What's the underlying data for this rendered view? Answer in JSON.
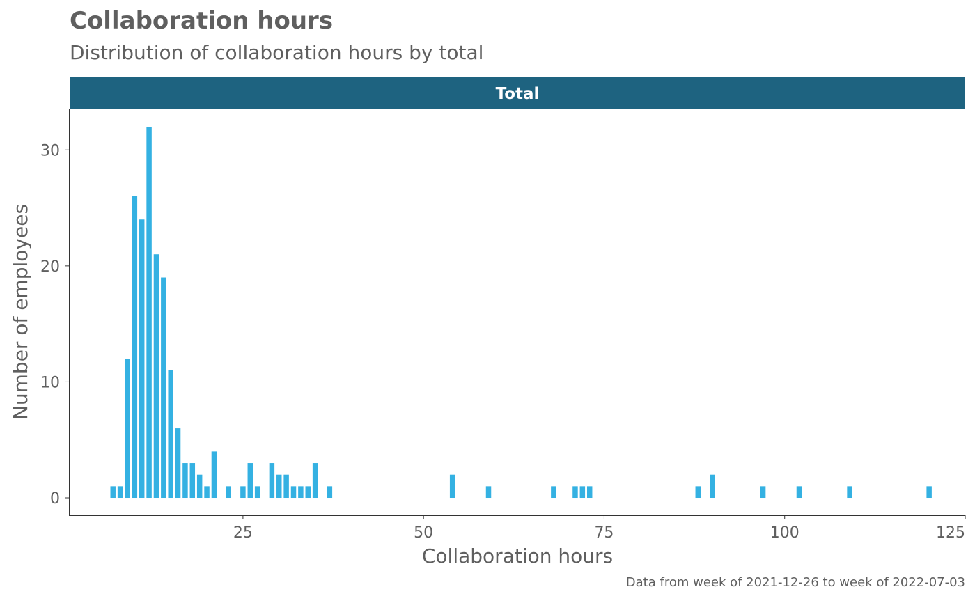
{
  "title": "Collaboration hours",
  "subtitle": "Distribution of collaboration hours by total",
  "caption": "Data from week of 2021-12-26 to week of 2022-07-03",
  "colors": {
    "bar": "#34b1e2",
    "facet_strip": "#1e6380",
    "text": "#5f5f5f",
    "axis": "#333333"
  },
  "chart_data": {
    "type": "bar",
    "facet": "Total",
    "xlabel": "Collaboration hours",
    "ylabel": "Number of employees",
    "xlim": [
      1,
      125
    ],
    "ylim": [
      -1.5,
      33.5
    ],
    "x_ticks": [
      25,
      50,
      75,
      100,
      125
    ],
    "y_ticks": [
      0,
      10,
      20,
      30
    ],
    "grid": false,
    "x": [
      7,
      8,
      9,
      10,
      11,
      12,
      13,
      14,
      15,
      16,
      17,
      18,
      19,
      20,
      21,
      23,
      25,
      26,
      27,
      29,
      30,
      31,
      32,
      33,
      34,
      35,
      37,
      54,
      59,
      68,
      71,
      72,
      73,
      88,
      90,
      97,
      102,
      109,
      120
    ],
    "values": [
      1,
      1,
      12,
      26,
      24,
      32,
      21,
      19,
      11,
      6,
      3,
      3,
      2,
      1,
      4,
      1,
      1,
      3,
      1,
      3,
      2,
      2,
      1,
      1,
      1,
      3,
      1,
      2,
      1,
      1,
      1,
      1,
      1,
      1,
      2,
      1,
      1,
      1,
      1
    ]
  }
}
